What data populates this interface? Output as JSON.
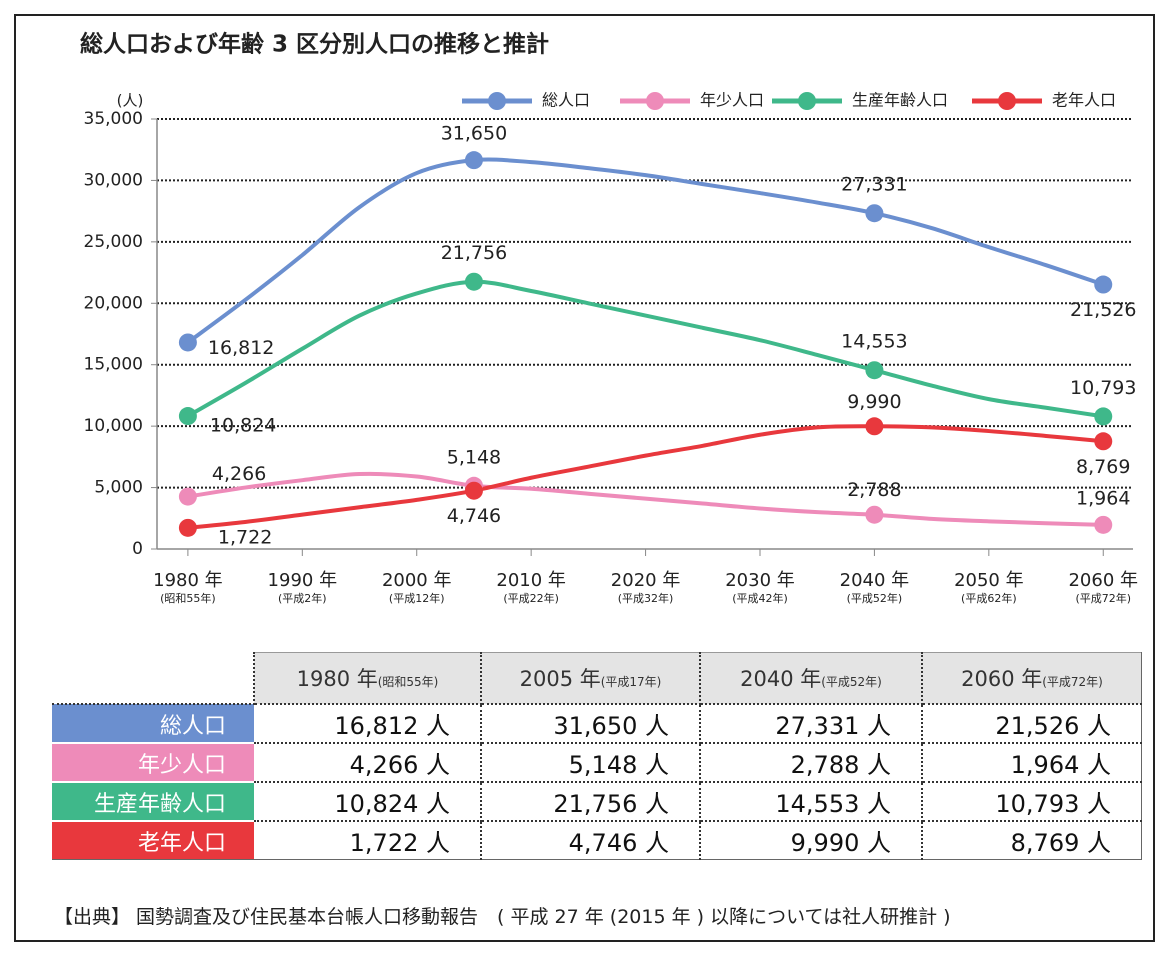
{
  "chart_data": {
    "type": "line",
    "title": "総人口および年齢 3 区分別人口の推移と推計",
    "y_unit": "(人)",
    "x": [
      1980,
      1985,
      1990,
      1995,
      2000,
      2005,
      2010,
      2015,
      2020,
      2025,
      2030,
      2035,
      2040,
      2045,
      2050,
      2055,
      2060
    ],
    "xlim": [
      1977.3,
      2062.6
    ],
    "xticks": [
      {
        "value": 1980,
        "label": "1980 年",
        "era": "(昭和55年)"
      },
      {
        "value": 1990,
        "label": "1990 年",
        "era": "(平成2年)"
      },
      {
        "value": 2000,
        "label": "2000 年",
        "era": "(平成12年)"
      },
      {
        "value": 2010,
        "label": "2010 年",
        "era": "(平成22年)"
      },
      {
        "value": 2020,
        "label": "2020 年",
        "era": "(平成32年)"
      },
      {
        "value": 2030,
        "label": "2030 年",
        "era": "(平成42年)"
      },
      {
        "value": 2040,
        "label": "2040 年",
        "era": "(平成52年)"
      },
      {
        "value": 2050,
        "label": "2050 年",
        "era": "(平成62年)"
      },
      {
        "value": 2060,
        "label": "2060 年",
        "era": "(平成72年)"
      }
    ],
    "ylim": [
      0,
      35000
    ],
    "yticks": [
      0,
      {
        "value": 5000,
        "label": "5,000"
      },
      {
        "value": 10000,
        "label": "10,000"
      },
      {
        "value": 15000,
        "label": "15,000"
      },
      {
        "value": 20000,
        "label": "20,000"
      },
      {
        "value": 25000,
        "label": "25,000"
      },
      {
        "value": 30000,
        "label": "30,000"
      },
      {
        "value": 35000,
        "label": "35,000"
      }
    ],
    "grid": true,
    "legend": "top-right",
    "series": [
      {
        "name": "総人口",
        "color": "#6b8fcf",
        "values": [
          16812,
          20260,
          23920,
          27830,
          30600,
          31650,
          31490,
          31000,
          30430,
          29700,
          28970,
          28200,
          27331,
          26120,
          24570,
          23100,
          21526
        ],
        "value_labels": [
          "16,812",
          null,
          null,
          null,
          null,
          "31,650",
          null,
          null,
          null,
          null,
          null,
          null,
          "27,331",
          null,
          null,
          null,
          "21,526"
        ]
      },
      {
        "name": "年少人口",
        "color": "#ee8bb9",
        "values": [
          4266,
          5000,
          5600,
          6100,
          5900,
          5148,
          4900,
          4500,
          4100,
          3700,
          3300,
          3000,
          2788,
          2450,
          2250,
          2100,
          1964
        ],
        "value_labels": [
          "4,266",
          null,
          null,
          null,
          null,
          "5,148",
          null,
          null,
          null,
          null,
          null,
          null,
          "2,788",
          null,
          null,
          null,
          "1,964"
        ]
      },
      {
        "name": "生産年齢人口",
        "color": "#3fb88a",
        "values": [
          10824,
          13500,
          16300,
          19000,
          20800,
          21756,
          21000,
          20000,
          19000,
          18000,
          17000,
          15800,
          14553,
          13300,
          12200,
          11500,
          10793
        ],
        "value_labels": [
          "10,824",
          null,
          null,
          null,
          null,
          "21,756",
          null,
          null,
          null,
          null,
          null,
          null,
          "14,553",
          null,
          null,
          null,
          "10,793"
        ]
      },
      {
        "name": "老年人口",
        "color": "#e8383d",
        "values": [
          1722,
          2200,
          2800,
          3400,
          4000,
          4746,
          5800,
          6700,
          7600,
          8400,
          9300,
          9900,
          9990,
          9900,
          9600,
          9200,
          8769
        ],
        "value_labels": [
          "1,722",
          null,
          null,
          null,
          null,
          "4,746",
          null,
          null,
          null,
          null,
          null,
          null,
          "9,990",
          null,
          null,
          null,
          "8,769"
        ]
      }
    ],
    "table": {
      "columns": [
        {
          "year": "1980 年",
          "era": "(昭和55年)"
        },
        {
          "year": "2005 年",
          "era": "(平成17年)"
        },
        {
          "year": "2040 年",
          "era": "(平成52年)"
        },
        {
          "year": "2060 年",
          "era": "(平成72年)"
        }
      ],
      "rows": [
        [
          "16,812 人",
          "31,650 人",
          "27,331 人",
          "21,526 人"
        ],
        [
          "4,266 人",
          "5,148 人",
          "2,788 人",
          "1,964 人"
        ],
        [
          "10,824 人",
          "21,756 人",
          "14,553 人",
          "10,793 人"
        ],
        [
          "1,722 人",
          "4,746 人",
          "9,990 人",
          "8,769 人"
        ]
      ]
    },
    "source": "【出典】 国勢調査及び住民基本台帳人口移動報告　( 平成 27 年 (2015 年 ) 以降については社人研推計 )"
  }
}
